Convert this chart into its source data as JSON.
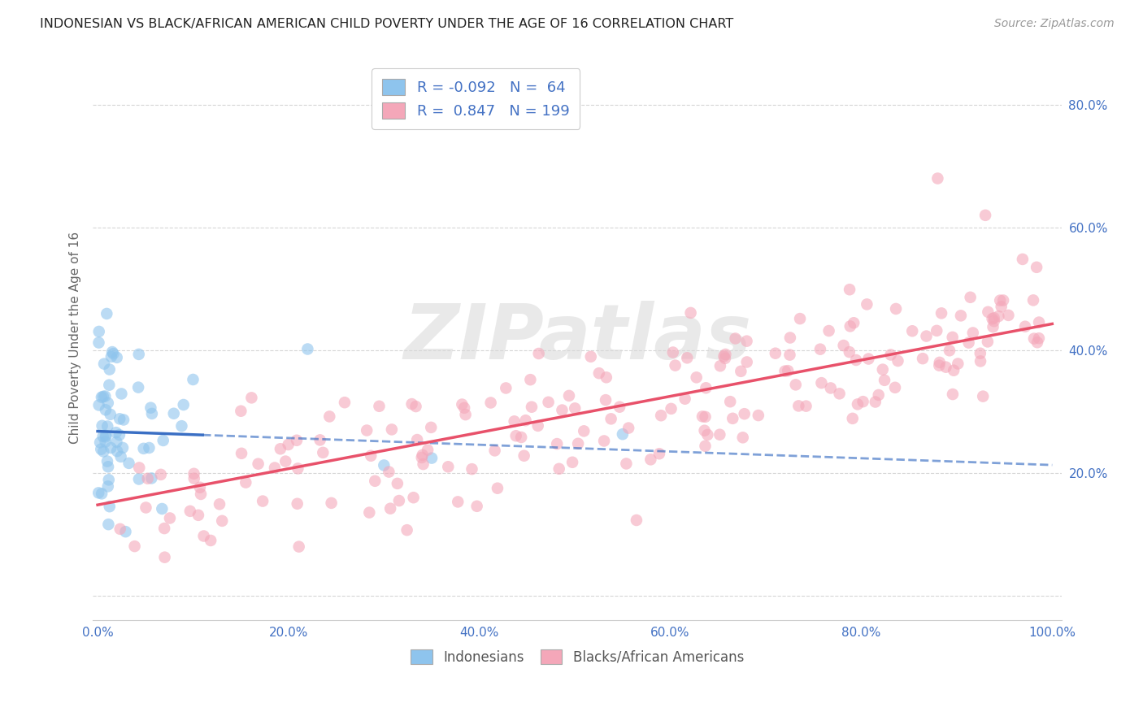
{
  "title": "INDONESIAN VS BLACK/AFRICAN AMERICAN CHILD POVERTY UNDER THE AGE OF 16 CORRELATION CHART",
  "source": "Source: ZipAtlas.com",
  "ylabel": "Child Poverty Under the Age of 16",
  "legend_label1": "Indonesians",
  "legend_label2": "Blacks/African Americans",
  "r1": -0.092,
  "n1": 64,
  "r2": 0.847,
  "n2": 199,
  "color_blue": "#8EC4ED",
  "color_pink": "#F4A7B9",
  "color_blue_line": "#3A6FC4",
  "color_pink_line": "#E8516A",
  "color_legend_text": "#4472C4",
  "background_color": "#ffffff",
  "xlim": [
    -0.005,
    1.01
  ],
  "ylim": [
    -0.04,
    0.88
  ],
  "xticks": [
    0.0,
    0.2,
    0.4,
    0.6,
    0.8,
    1.0
  ],
  "xticklabels": [
    "0.0%",
    "20.0%",
    "40.0%",
    "60.0%",
    "80.0%",
    "100.0%"
  ],
  "yticks": [
    0.0,
    0.2,
    0.4,
    0.6,
    0.8
  ],
  "yticklabels": [
    "",
    "20.0%",
    "40.0%",
    "60.0%",
    "80.0%"
  ],
  "blue_line_y0": 0.268,
  "blue_line_slope": -0.055,
  "blue_solid_xend": 0.11,
  "pink_line_y0": 0.148,
  "pink_line_slope": 0.295,
  "watermark_text": "ZIPatlas",
  "grid_color": "#CCCCCC",
  "tick_color": "#4472C4"
}
